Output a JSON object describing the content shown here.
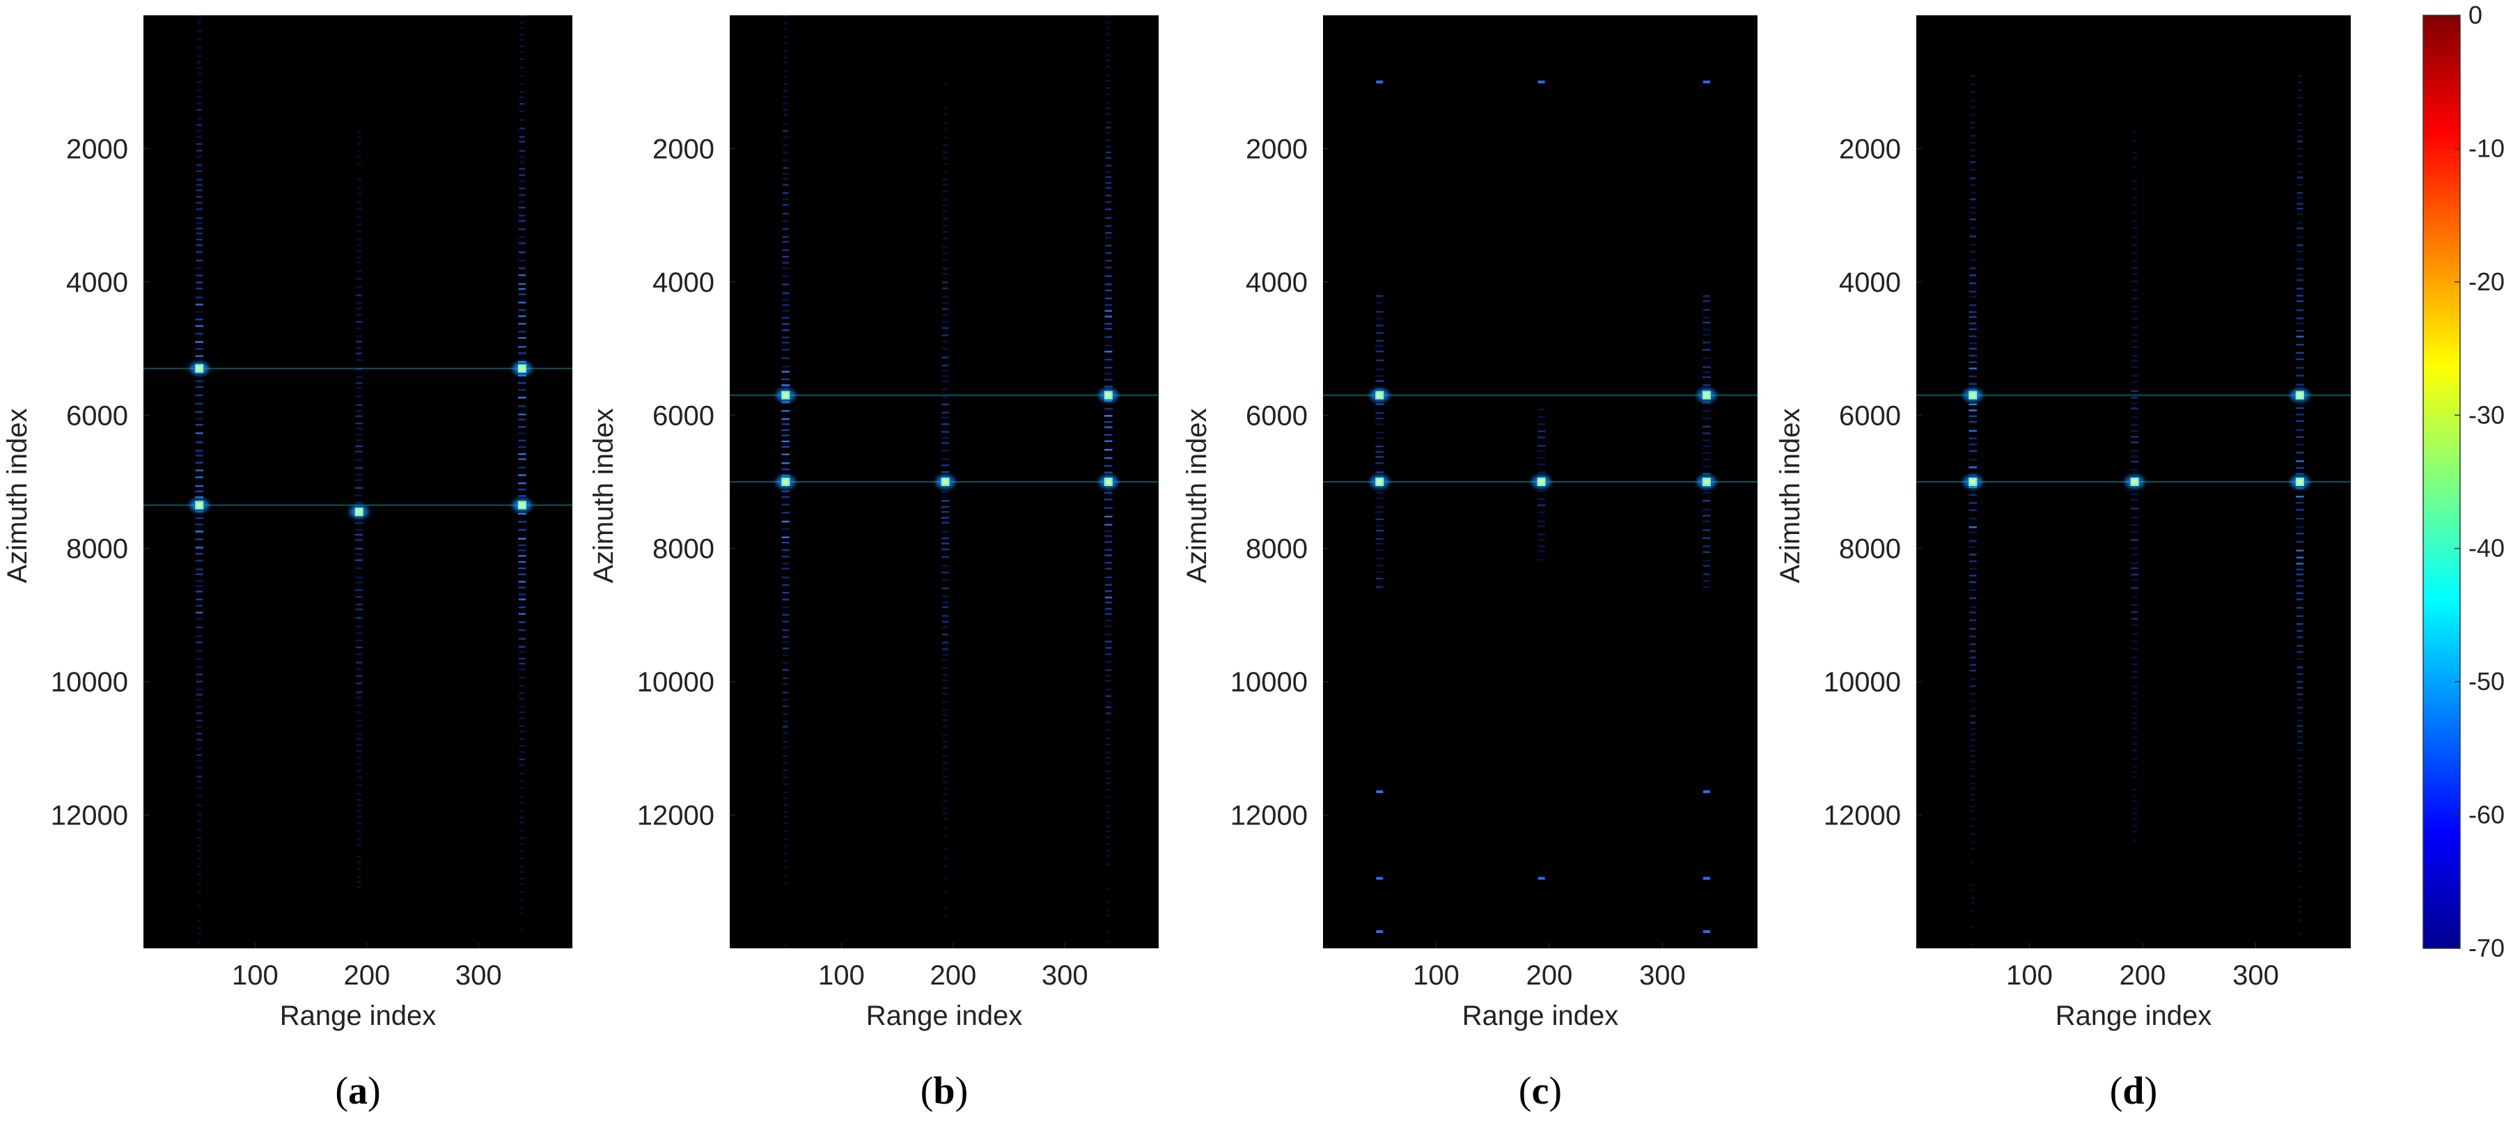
{
  "chart_data": [
    {
      "type": "heatmap",
      "panel": "(a)",
      "caption_open": "(",
      "caption_letter": "a",
      "caption_close": ")",
      "xlabel": "Range index",
      "ylabel": "Azimuth index",
      "xticks": [
        100,
        200,
        300
      ],
      "yticks": [
        2000,
        4000,
        6000,
        8000,
        10000,
        12000
      ],
      "xlim": [
        0,
        384
      ],
      "ylim": [
        0,
        14000
      ],
      "targets_range": [
        50,
        193,
        339
      ],
      "lines": [
        {
          "range": 50,
          "intensity": 0.75,
          "extent": [
            0,
            14000
          ]
        },
        {
          "range": 193,
          "intensity": 0.55,
          "extent": [
            1000,
            14000
          ]
        },
        {
          "range": 339,
          "intensity": 0.75,
          "extent": [
            0,
            14000
          ]
        }
      ],
      "hlines": [
        5300,
        7350
      ],
      "peaks": [
        {
          "range": 50,
          "azimuth": 5300
        },
        {
          "range": 50,
          "azimuth": 7350
        },
        {
          "range": 193,
          "azimuth": 7450
        },
        {
          "range": 339,
          "azimuth": 5300
        },
        {
          "range": 339,
          "azimuth": 7350
        }
      ]
    },
    {
      "type": "heatmap",
      "panel": "(b)",
      "caption_open": "(",
      "caption_letter": "b",
      "caption_close": ")",
      "xlabel": "Range index",
      "ylabel": "Azimuth index",
      "xticks": [
        100,
        200,
        300
      ],
      "yticks": [
        2000,
        4000,
        6000,
        8000,
        10000,
        12000
      ],
      "xlim": [
        0,
        384
      ],
      "ylim": [
        0,
        14000
      ],
      "targets_range": [
        50,
        193,
        339
      ],
      "lines": [
        {
          "range": 50,
          "intensity": 0.75,
          "extent": [
            0,
            14000
          ]
        },
        {
          "range": 193,
          "intensity": 0.55,
          "extent": [
            600,
            14000
          ]
        },
        {
          "range": 339,
          "intensity": 0.75,
          "extent": [
            0,
            14000
          ]
        }
      ],
      "hlines": [
        5700,
        7000
      ],
      "peaks": [
        {
          "range": 50,
          "azimuth": 5700
        },
        {
          "range": 50,
          "azimuth": 7000
        },
        {
          "range": 193,
          "azimuth": 7000
        },
        {
          "range": 339,
          "azimuth": 5700
        },
        {
          "range": 339,
          "azimuth": 7000
        }
      ]
    },
    {
      "type": "heatmap",
      "panel": "(c)",
      "caption_open": "(",
      "caption_letter": "c",
      "caption_close": ")",
      "xlabel": "Range index",
      "ylabel": "Azimuth index",
      "xticks": [
        100,
        200,
        300
      ],
      "yticks": [
        2000,
        4000,
        6000,
        8000,
        10000,
        12000
      ],
      "xlim": [
        0,
        384
      ],
      "ylim": [
        0,
        14000
      ],
      "targets_range": [
        50,
        193,
        339
      ],
      "lines": [
        {
          "range": 50,
          "intensity": 0.5,
          "extent": [
            4200,
            8600
          ]
        },
        {
          "range": 193,
          "intensity": 0.35,
          "extent": [
            5900,
            8200
          ]
        },
        {
          "range": 339,
          "intensity": 0.5,
          "extent": [
            4200,
            8600
          ]
        }
      ],
      "hlines": [
        5700,
        7000
      ],
      "peaks": [
        {
          "range": 50,
          "azimuth": 5700
        },
        {
          "range": 50,
          "azimuth": 7000
        },
        {
          "range": 193,
          "azimuth": 7000
        },
        {
          "range": 339,
          "azimuth": 5700
        },
        {
          "range": 339,
          "azimuth": 7000
        }
      ],
      "ghosts": [
        {
          "range": 50,
          "azimuth": 1000
        },
        {
          "range": 193,
          "azimuth": 1000
        },
        {
          "range": 339,
          "azimuth": 1000
        },
        {
          "range": 50,
          "azimuth": 11650
        },
        {
          "range": 339,
          "azimuth": 11650
        },
        {
          "range": 50,
          "azimuth": 12950
        },
        {
          "range": 193,
          "azimuth": 12950
        },
        {
          "range": 339,
          "azimuth": 12950
        },
        {
          "range": 50,
          "azimuth": 13750
        },
        {
          "range": 339,
          "azimuth": 13750
        }
      ]
    },
    {
      "type": "heatmap",
      "panel": "(d)",
      "caption_open": "(",
      "caption_letter": "d",
      "caption_close": ")",
      "xlabel": "Range index",
      "ylabel": "Azimuth index",
      "xticks": [
        100,
        200,
        300
      ],
      "yticks": [
        2000,
        4000,
        6000,
        8000,
        10000,
        12000
      ],
      "xlim": [
        0,
        384
      ],
      "ylim": [
        0,
        14000
      ],
      "targets_range": [
        50,
        193,
        339
      ],
      "lines": [
        {
          "range": 50,
          "intensity": 0.7,
          "extent": [
            900,
            14000
          ]
        },
        {
          "range": 193,
          "intensity": 0.45,
          "extent": [
            900,
            13200
          ]
        },
        {
          "range": 339,
          "intensity": 0.7,
          "extent": [
            900,
            14000
          ]
        }
      ],
      "hlines": [
        5700,
        7000
      ],
      "peaks": [
        {
          "range": 50,
          "azimuth": 5700
        },
        {
          "range": 50,
          "azimuth": 7000
        },
        {
          "range": 193,
          "azimuth": 7000
        },
        {
          "range": 339,
          "azimuth": 5700
        },
        {
          "range": 339,
          "azimuth": 7000
        }
      ]
    }
  ],
  "colorbar": {
    "colormap": "jet",
    "min": -70,
    "max": 0,
    "ticks": [
      0,
      -10,
      -20,
      -30,
      -40,
      -50,
      -60,
      -70
    ],
    "colors": [
      "#00008f",
      "#0000ff",
      "#0080ff",
      "#00ffff",
      "#80ff80",
      "#ffff00",
      "#ff8000",
      "#ff0000",
      "#800000"
    ]
  }
}
